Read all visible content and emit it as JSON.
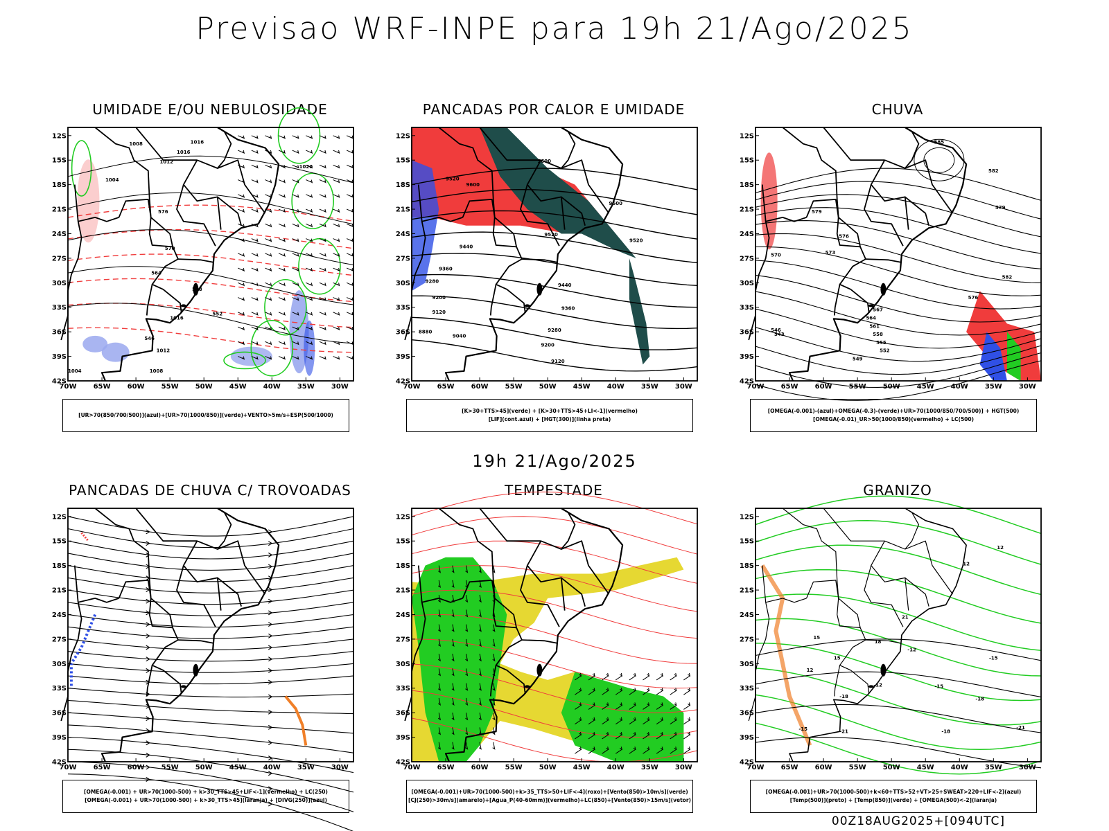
{
  "page": {
    "title": "Previsao WRF-INPE  para 19h 21/Ago/2025",
    "mid_time": "19h 21/Ago/2025",
    "footer": "00Z18AUG2025+[094UTC]"
  },
  "axes": {
    "lat_labels": [
      "12S",
      "15S",
      "18S",
      "21S",
      "24S",
      "27S",
      "30S",
      "33S",
      "36S",
      "39S",
      "42S"
    ],
    "lon_labels": [
      "70W",
      "65W",
      "60W",
      "55W",
      "50W",
      "45W",
      "40W",
      "35W",
      "30W"
    ]
  },
  "colors": {
    "red": "#f03c3c",
    "green": "#22cc22",
    "blue": "#3050e6",
    "lightblue": "#9aa8ee",
    "teal": "#1f4d4a",
    "yellow": "#e6d832",
    "orange": "#f07f28",
    "black": "#000000"
  },
  "panels": [
    {
      "title": "UMIDADE E/OU NEBULOSIDADE",
      "legend": [
        "[UR>70(850/700/500)](azul)+[UR>70(1000/850)](verde)+VENTO>5m/s+ESP(500/1000)"
      ],
      "contour_labels": [
        "1008",
        "1016",
        "1012",
        "1016",
        "1004",
        "1020",
        "576",
        "570",
        "564",
        "558",
        "552",
        "546",
        "1016",
        "1012",
        "1008",
        "1004"
      ]
    },
    {
      "title": "PANCADAS POR CALOR E UMIDADE",
      "legend": [
        "[K>30+TTS>45](verde) + [K>30+TTS>45+LI<-1](vermelho)",
        "[LIF](cont.azul) + [HGT(300)](linha preta)"
      ],
      "contour_labels": [
        "9520",
        "9600",
        "9600",
        "9600",
        "9520",
        "9440",
        "9520",
        "9360",
        "9440",
        "9280",
        "9360",
        "9200",
        "9280",
        "9120",
        "9200",
        "9040",
        "9120",
        "8880"
      ]
    },
    {
      "title": "CHUVA",
      "legend": [
        "[OMEGA(-0.001)-(azul)+OMEGA(-0.3)-(verde)+UR>70(1000/850/700/500)] + HGT(500)",
        "[OMEGA(-0.01)_UR>50(1000/850)(vermelho) + LC(500)"
      ],
      "contour_labels": [
        "585",
        "582",
        "579",
        "576",
        "573",
        "570",
        "567",
        "564",
        "561",
        "558",
        "555",
        "552",
        "549",
        "546",
        "543",
        "579",
        "582",
        "576"
      ]
    },
    {
      "title": "PANCADAS DE CHUVA C/ TROVOADAS",
      "legend": [
        "[OMEGA(-0.001) + UR>70(1000-500) + k>30_TTS>45+LIF<-1](vermelho) + LC(250)",
        "[OMEGA(-0.001) + UR>70(1000-500) + k>30_TTS>45](laranja) + [DIVG(250)](azul)"
      ],
      "contour_labels": []
    },
    {
      "title": "TEMPESTADE",
      "legend": [
        "[OMEGA(-0.001)+UR>70(1000-500)+k>35_TTS>50+LIF<-4](roxo)+[Vento(850)>10m/s](verde)",
        "[CJ(250)>30m/s](amarelo)+[Agua_P(40-60mm)](vermelho)+LC(850)+[Vento(850)>15m/s](vetor)"
      ],
      "contour_labels": []
    },
    {
      "title": "GRANIZO",
      "legend": [
        "[OMEGA(-0.001)+UR>70(1000-500)+k<60+TTS>52+VT>25+SWEAT>220+LIF<-2](azul)",
        "[Temp(500)](preto) + [Temp(850)](verde) + [OMEGA(500)<-2](laranja)"
      ],
      "contour_labels": [
        "12",
        "12",
        "15",
        "21",
        "12",
        "18",
        "15",
        "-12",
        "-15",
        "-18",
        "-12",
        "-15",
        "-21",
        "-18",
        "-21",
        "-18",
        "-15"
      ]
    }
  ]
}
